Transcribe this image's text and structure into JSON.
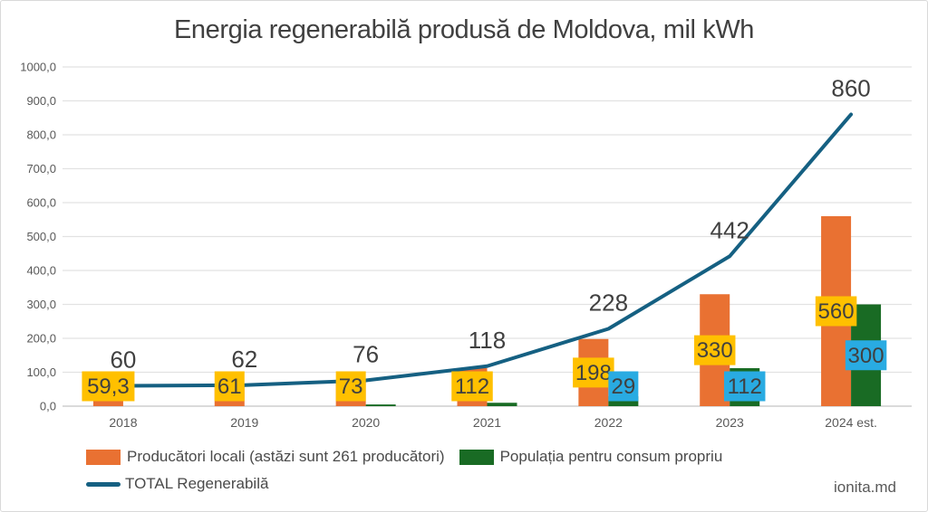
{
  "title": "Energia regenerabilă produsă de Moldova, mil kWh",
  "watermark": "ionita.md",
  "chart_data": {
    "type": "bar",
    "subtype": "bar+line combo",
    "title": "Energia regenerabilă produsă de Moldova, mil kWh",
    "categories": [
      "2018",
      "2019",
      "2020",
      "2021",
      "2022",
      "2023",
      "2024 est."
    ],
    "series": [
      {
        "name": "Producători locali (astăzi sunt 261 producători)",
        "type": "bar",
        "color": "#E97132",
        "label_bg": "#FFC000",
        "values": [
          59.3,
          61,
          73,
          112,
          198,
          330,
          560
        ],
        "labels": [
          "59,3",
          "61",
          "73",
          "112",
          "198",
          "330",
          "560"
        ]
      },
      {
        "name": "Populația pentru consum propriu",
        "type": "bar",
        "color": "#196B24",
        "label_bg": "#29ABE2",
        "values": [
          0,
          0,
          5,
          10,
          29,
          112,
          300
        ],
        "labels": [
          null,
          null,
          null,
          null,
          "29",
          "112",
          "300"
        ]
      },
      {
        "name": "TOTAL Regenerabilă",
        "type": "line",
        "color": "#156082",
        "values": [
          60,
          62,
          76,
          118,
          228,
          442,
          860
        ],
        "labels": [
          "60",
          "62",
          "76",
          "118",
          "228",
          "442",
          "860"
        ]
      }
    ],
    "ylim": [
      0,
      1000
    ],
    "ytick_step": 100,
    "ytick_labels": [
      "0,0",
      "100,0",
      "200,0",
      "300,0",
      "400,0",
      "500,0",
      "600,0",
      "700,0",
      "800,0",
      "900,0",
      "1000,0"
    ],
    "grid": true,
    "legend_position": "bottom-left",
    "grid_color": "#E2E2E2",
    "axis_line_color": "#C3C3C3",
    "text_colors": {
      "title": "#404040",
      "axis": "#595959",
      "data_label": "#404040"
    }
  }
}
